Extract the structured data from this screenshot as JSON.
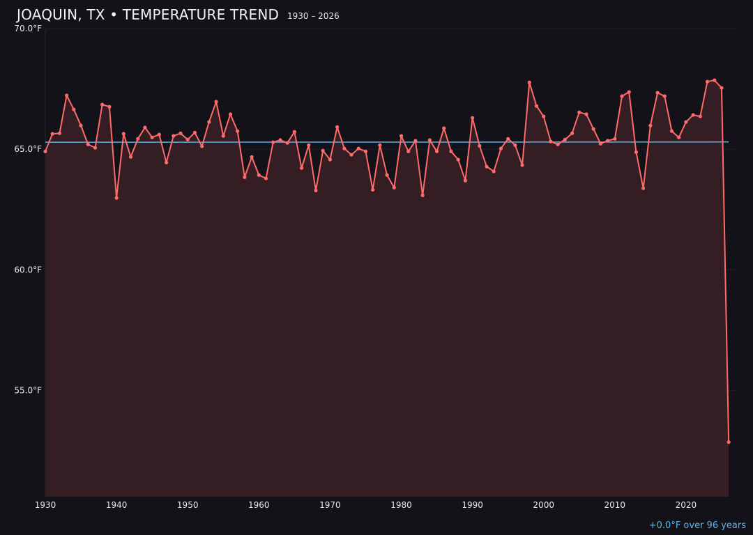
{
  "chart_data": {
    "type": "line",
    "title": "JOAQUIN, TX • TEMPERATURE TREND",
    "subtitle": "1930 – 2026",
    "xlabel": "",
    "ylabel": "",
    "xlim": [
      1930,
      2027
    ],
    "ylim": [
      50.6,
      70.0
    ],
    "x_ticks": [
      "1930",
      "1940",
      "1950",
      "1960",
      "1970",
      "1980",
      "1990",
      "2000",
      "2010",
      "2020"
    ],
    "y_ticks": [
      "55.0°F",
      "60.0°F",
      "65.0°F",
      "70.0°F"
    ],
    "y_tick_values": [
      55,
      60,
      65,
      70
    ],
    "grid": true,
    "series": [
      {
        "x": [
          1930,
          1931,
          1932,
          1933,
          1934,
          1935,
          1936,
          1937,
          1938,
          1939,
          1940,
          1941,
          1942,
          1943,
          1944,
          1945,
          1946,
          1947,
          1948,
          1949,
          1950,
          1951,
          1952,
          1953,
          1954,
          1955,
          1956,
          1957,
          1958,
          1959,
          1960,
          1961,
          1962,
          1963,
          1964,
          1965,
          1966,
          1967,
          1968,
          1969,
          1970,
          1971,
          1972,
          1973,
          1974,
          1975,
          1976,
          1977,
          1978,
          1979,
          1980,
          1981,
          1982,
          1983,
          1984,
          1985,
          1986,
          1987,
          1988,
          1989,
          1990,
          1991,
          1992,
          1993,
          1994,
          1995,
          1996,
          1997,
          1998,
          1999,
          2000,
          2001,
          2002,
          2003,
          2004,
          2005,
          2006,
          2007,
          2008,
          2009,
          2010,
          2011,
          2012,
          2013,
          2014,
          2015,
          2016,
          2017,
          2018,
          2019,
          2020,
          2021,
          2022,
          2023,
          2024,
          2025,
          2026
        ],
        "values": [
          64.91,
          65.64,
          65.66,
          67.23,
          66.65,
          65.98,
          65.2,
          65.06,
          66.85,
          66.76,
          62.98,
          65.64,
          64.68,
          65.43,
          65.9,
          65.49,
          65.61,
          64.45,
          65.55,
          65.66,
          65.4,
          65.69,
          65.12,
          66.13,
          66.97,
          65.55,
          66.45,
          65.75,
          63.84,
          64.68,
          63.93,
          63.79,
          65.29,
          65.38,
          65.26,
          65.72,
          64.22,
          65.17,
          63.29,
          64.94,
          64.57,
          65.92,
          65.03,
          64.77,
          65.03,
          64.91,
          63.32,
          65.17,
          63.93,
          63.41,
          65.55,
          64.91,
          65.35,
          63.09,
          65.38,
          64.91,
          65.87,
          64.91,
          64.57,
          63.7,
          66.3,
          65.14,
          64.28,
          64.08,
          65.03,
          65.43,
          65.17,
          64.34,
          67.77,
          66.79,
          66.36,
          65.32,
          65.2,
          65.4,
          65.66,
          66.53,
          66.45,
          65.84,
          65.23,
          65.35,
          65.43,
          67.2,
          67.37,
          64.88,
          63.38,
          65.98,
          67.34,
          67.2,
          65.75,
          65.49,
          66.13,
          66.42,
          66.36,
          67.8,
          67.86,
          67.54,
          52.86
        ],
        "color": "#ff6b6b",
        "fill": "#3a1f26"
      }
    ],
    "trend": {
      "start": [
        1930,
        65.29
      ],
      "end": [
        2026,
        65.3
      ],
      "color": "#5ab4ea"
    },
    "annotation": "+0.0°F over 96 years"
  }
}
